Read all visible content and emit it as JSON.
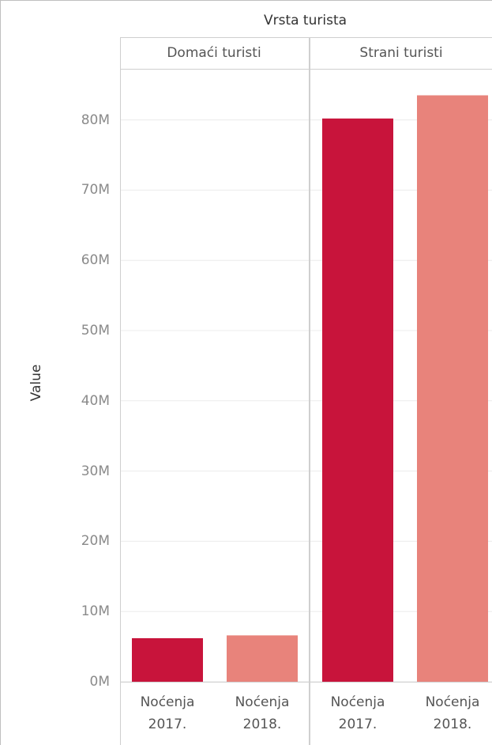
{
  "chart_data": {
    "type": "bar",
    "title": "Vrsta turista",
    "ylabel": "Value",
    "ylim": [
      0,
      88
    ],
    "yticks": [
      "0M",
      "10M",
      "20M",
      "30M",
      "40M",
      "50M",
      "60M",
      "70M",
      "80M"
    ],
    "panels": [
      {
        "name": "Domaći turisti",
        "categories": [
          "Noćenja 2017.",
          "Noćenja 2018."
        ],
        "category_lines": [
          [
            "Noćenja",
            "2017."
          ],
          [
            "Noćenja",
            "2018."
          ]
        ],
        "values": [
          6.2,
          6.6
        ]
      },
      {
        "name": "Strani turisti",
        "categories": [
          "Noćenja 2017.",
          "Noćenja 2018."
        ],
        "category_lines": [
          [
            "Noćenja",
            "2017."
          ],
          [
            "Noćenja",
            "2018."
          ]
        ],
        "values": [
          80.2,
          83.5
        ]
      }
    ],
    "colors": [
      "#c8143b",
      "#e8837b"
    ],
    "grid": true
  }
}
